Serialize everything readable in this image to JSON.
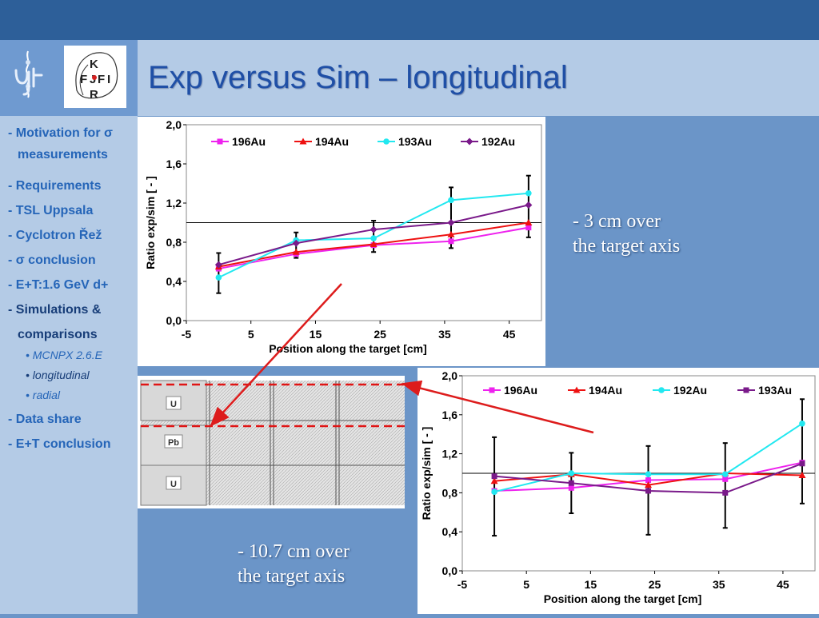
{
  "slide": {
    "title": "Exp versus Sim – longitudinal",
    "colors": {
      "accent": "#2565b8",
      "top_bar": "#2d5f99",
      "arrow": "#dd1c1c"
    }
  },
  "logos": {
    "left": "ujf",
    "right": {
      "letters": [
        "K",
        "F",
        "J",
        "F",
        "I",
        "R"
      ]
    }
  },
  "nav": {
    "items": [
      {
        "label": "- Motivation for σ"
      },
      {
        "label": "measurements"
      },
      {
        "label": "- Requirements"
      },
      {
        "label": "- TSL Uppsala"
      },
      {
        "label": "- Cyclotron Řež"
      },
      {
        "label": "- σ conclusion"
      },
      {
        "label": "- E+T:1.6 GeV d+"
      },
      {
        "label": "- Simulations &"
      },
      {
        "label": "comparisons"
      }
    ],
    "subitems": [
      {
        "label": "• MCNPX 2.6.E"
      },
      {
        "label": "• longitudinal"
      },
      {
        "label": "• radial"
      }
    ],
    "items_bottom": [
      {
        "label": "- Data share"
      },
      {
        "label": "- E+T conclusion"
      }
    ]
  },
  "notes": {
    "top": [
      "- 3 cm over",
      "the target axis"
    ],
    "bottom": [
      "- 10.7 cm over",
      "the target axis"
    ]
  },
  "diagram": {
    "labels": [
      "U",
      "Pb",
      "U"
    ]
  },
  "chart_data": [
    {
      "type": "line",
      "title": "",
      "xlabel": "Position along the target [cm]",
      "ylabel": "Ratio exp/sim [ - ]",
      "xlim": [
        -5,
        50
      ],
      "ylim": [
        0,
        2
      ],
      "xticks": [
        "-5",
        "5",
        "15",
        "25",
        "35",
        "45"
      ],
      "xtick_values": [
        -5,
        5,
        15,
        25,
        35,
        45
      ],
      "yticks": [
        "0,0",
        "0,4",
        "0,8",
        "1,2",
        "1,6",
        "2,0"
      ],
      "ytick_values": [
        0,
        0.4,
        0.8,
        1.2,
        1.6,
        2.0
      ],
      "reference_line": 1.0,
      "x": [
        0,
        12,
        24,
        36,
        48
      ],
      "series": [
        {
          "name": "196Au",
          "color": "#ee22ee",
          "marker": "square",
          "values": [
            0.53,
            0.68,
            0.77,
            0.81,
            0.95
          ]
        },
        {
          "name": "194Au",
          "color": "#ee1111",
          "marker": "triangle",
          "values": [
            0.55,
            0.7,
            0.78,
            0.88,
            1.0
          ]
        },
        {
          "name": "193Au",
          "color": "#22e8f0",
          "marker": "circle",
          "values": [
            0.44,
            0.82,
            0.84,
            1.23,
            1.3
          ]
        },
        {
          "name": "192Au",
          "color": "#7a1a8a",
          "marker": "diamond",
          "values": [
            0.57,
            0.79,
            0.93,
            1.0,
            1.18
          ]
        }
      ],
      "error_bars": {
        "x": [
          0,
          12,
          24,
          36,
          48
        ],
        "low": [
          0.28,
          0.64,
          0.7,
          0.74,
          0.85
        ],
        "high": [
          0.69,
          0.9,
          1.02,
          1.36,
          1.48
        ]
      }
    },
    {
      "type": "line",
      "title": "",
      "xlabel": "Position along the target [cm]",
      "ylabel": "Ratio exp/sim [ - ]",
      "xlim": [
        -5,
        50
      ],
      "ylim": [
        0,
        2
      ],
      "xticks": [
        "-5",
        "5",
        "15",
        "25",
        "35",
        "45"
      ],
      "xtick_values": [
        -5,
        5,
        15,
        25,
        35,
        45
      ],
      "yticks": [
        "0,0",
        "0,4",
        "0,8",
        "1,2",
        "1,6",
        "2,0"
      ],
      "ytick_values": [
        0,
        0.4,
        0.8,
        1.2,
        1.6,
        2.0
      ],
      "reference_line": 1.0,
      "x": [
        0,
        12,
        24,
        36,
        48
      ],
      "series": [
        {
          "name": "196Au",
          "color": "#ee22ee",
          "marker": "square",
          "values": [
            0.82,
            0.85,
            0.93,
            0.94,
            1.11
          ]
        },
        {
          "name": "194Au",
          "color": "#ee1111",
          "marker": "triangle",
          "values": [
            0.92,
            0.99,
            0.88,
            1.0,
            0.98
          ]
        },
        {
          "name": "192Au",
          "color": "#22e8f0",
          "marker": "circle",
          "values": [
            0.81,
            1.0,
            0.99,
            0.99,
            1.51
          ]
        },
        {
          "name": "193Au",
          "color": "#7a1a8a",
          "marker": "square",
          "values": [
            0.97,
            0.9,
            0.82,
            0.8,
            1.1
          ]
        }
      ],
      "error_bars": {
        "x": [
          0,
          12,
          24,
          36,
          48
        ],
        "low": [
          0.36,
          0.59,
          0.37,
          0.44,
          0.69
        ],
        "high": [
          1.37,
          1.21,
          1.28,
          1.31,
          1.76
        ]
      }
    }
  ]
}
